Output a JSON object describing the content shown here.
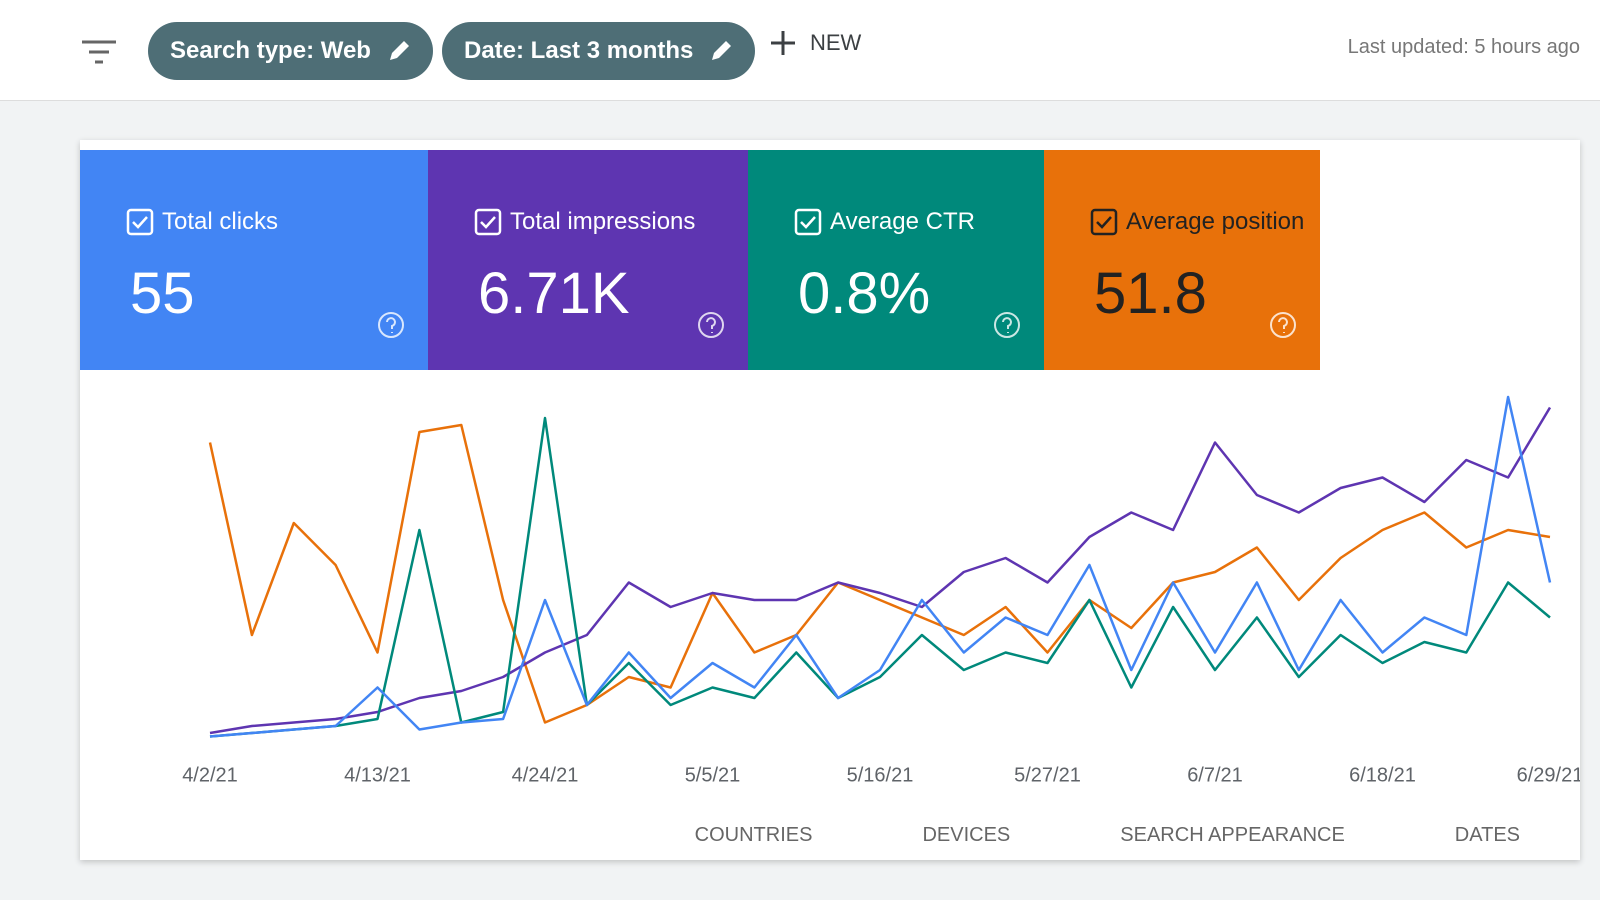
{
  "toolbar": {
    "chips": [
      "Search type: Web",
      "Date: Last 3 months"
    ],
    "new_button": "NEW",
    "last_updated": "Last updated: 5 hours ago"
  },
  "chart_data": {
    "type": "line",
    "x": [
      "4/2/21",
      null,
      null,
      null,
      "4/13/21",
      null,
      null,
      null,
      "4/24/21",
      null,
      null,
      null,
      "5/5/21",
      null,
      null,
      null,
      "5/16/21",
      null,
      null,
      null,
      "5/27/21",
      null,
      null,
      null,
      "6/7/21",
      null,
      null,
      null,
      "6/18/21",
      null,
      null,
      null,
      "6/29/21"
    ],
    "series": [
      {
        "name": "Total clicks",
        "summary": "55",
        "color": "#4285f4",
        "values": [
          1,
          2,
          3,
          4,
          15,
          3,
          5,
          6,
          40,
          10,
          25,
          12,
          22,
          15,
          30,
          12,
          20,
          40,
          25,
          35,
          30,
          50,
          20,
          45,
          25,
          45,
          20,
          40,
          25,
          35,
          30,
          98,
          45
        ]
      },
      {
        "name": "Total impressions",
        "summary": "6.71K",
        "color": "#5e35b1",
        "values": [
          2,
          4,
          5,
          6,
          8,
          12,
          14,
          18,
          25,
          30,
          45,
          38,
          42,
          40,
          40,
          45,
          42,
          38,
          48,
          52,
          45,
          58,
          65,
          60,
          85,
          70,
          65,
          72,
          75,
          68,
          80,
          75,
          95
        ]
      },
      {
        "name": "Average CTR",
        "summary": "0.8%",
        "color": "#00897b",
        "values": [
          1,
          2,
          3,
          4,
          6,
          60,
          5,
          8,
          92,
          10,
          22,
          10,
          15,
          12,
          25,
          12,
          18,
          30,
          20,
          25,
          22,
          40,
          15,
          38,
          20,
          35,
          18,
          30,
          22,
          28,
          25,
          45,
          35
        ]
      },
      {
        "name": "Average position",
        "summary": "51.8",
        "color": "#e8710a",
        "values": [
          85,
          30,
          62,
          50,
          25,
          88,
          90,
          40,
          5,
          10,
          18,
          15,
          42,
          25,
          30,
          45,
          40,
          35,
          30,
          38,
          25,
          40,
          32,
          45,
          48,
          55,
          40,
          52,
          60,
          65,
          55,
          60,
          58
        ]
      }
    ],
    "ylim": [
      0,
      100
    ],
    "grid": false
  },
  "tabs": [
    "COUNTRIES",
    "DEVICES",
    "SEARCH APPEARANCE",
    "DATES"
  ]
}
